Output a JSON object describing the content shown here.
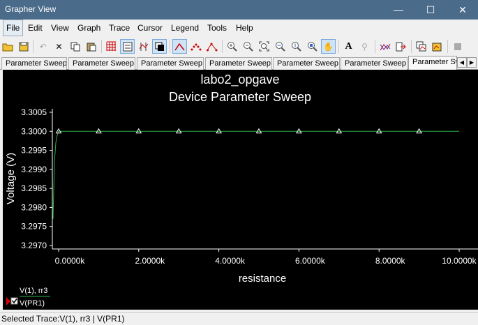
{
  "window": {
    "title": "Grapher View",
    "minimize_glyph": "—",
    "maximize_glyph": "☐",
    "close_glyph": "✕"
  },
  "menu": [
    "File",
    "Edit",
    "View",
    "Graph",
    "Trace",
    "Cursor",
    "Legend",
    "Tools",
    "Help"
  ],
  "toolbar_icons": [
    "open-icon",
    "save-icon",
    "undo-icon",
    "delete-icon",
    "copy-icon",
    "paste-icon",
    "grid-icon",
    "legend-icon",
    "cursors-icon",
    "reverse-colors-icon",
    "line-trace-icon",
    "dot-trace-icon",
    "line-dot-trace-icon",
    "zoom-in-icon",
    "zoom-out-icon",
    "zoom-fit-icon",
    "zoom-x-icon",
    "zoom-y-icon",
    "zoom-area-icon",
    "pan-icon",
    "text-icon",
    "probe-icon",
    "merge-icon",
    "export-icon",
    "overlay-icon",
    "add-trace-icon",
    "stop-icon"
  ],
  "tabs": [
    "Parameter Sweep",
    "Parameter Sweep",
    "Parameter Sweep",
    "Parameter Sweep",
    "Parameter Sweep",
    "Parameter Sweep",
    "Parameter Sw"
  ],
  "chart_data": {
    "type": "line",
    "title": "labo2_opgave",
    "subtitle": "Device Parameter Sweep",
    "xlabel": "resistance",
    "ylabel": "Voltage (V)",
    "xlim": [
      -1000,
      10000
    ],
    "ylim": [
      3.297,
      3.3005
    ],
    "x_ticks": [
      0,
      2000,
      4000,
      6000,
      8000,
      10000
    ],
    "x_tick_labels": [
      "0.0000k",
      "2.0000k",
      "4.0000k",
      "6.0000k",
      "8.0000k",
      "10.0000k"
    ],
    "y_ticks": [
      3.297,
      3.2975,
      3.298,
      3.2985,
      3.299,
      3.2995,
      3.3,
      3.3005
    ],
    "y_tick_labels": [
      "3.2970",
      "3.2975",
      "3.2980",
      "3.2985",
      "3.2990",
      "3.2995",
      "3.3000",
      "3.3005"
    ],
    "grid": false,
    "series": [
      {
        "name": "V(1), rr3",
        "color": "#2bb34a",
        "x": [
          -1000,
          -950,
          -900,
          -850,
          -800,
          0,
          1000,
          2000,
          3000,
          4000,
          5000,
          6000,
          7000,
          8000,
          9000,
          10000
        ],
        "y": [
          3.2977,
          3.2992,
          3.2997,
          3.2999,
          3.3,
          3.3,
          3.3,
          3.3,
          3.3,
          3.3,
          3.3,
          3.3,
          3.3,
          3.3,
          3.3,
          3.3
        ],
        "markers_x": [
          0,
          1000,
          2000,
          3000,
          4000,
          5000,
          6000,
          7000,
          8000,
          9000
        ],
        "markers_y": [
          3.3,
          3.3,
          3.3,
          3.3,
          3.3,
          3.3,
          3.3,
          3.3,
          3.3,
          3.3
        ]
      }
    ],
    "legend": {
      "placement": "bottom-left",
      "entries": [
        "V(1), rr3",
        "V(PR1)"
      ]
    }
  },
  "status": {
    "text": "Selected Trace:V(1), rr3 | V(PR1)"
  }
}
